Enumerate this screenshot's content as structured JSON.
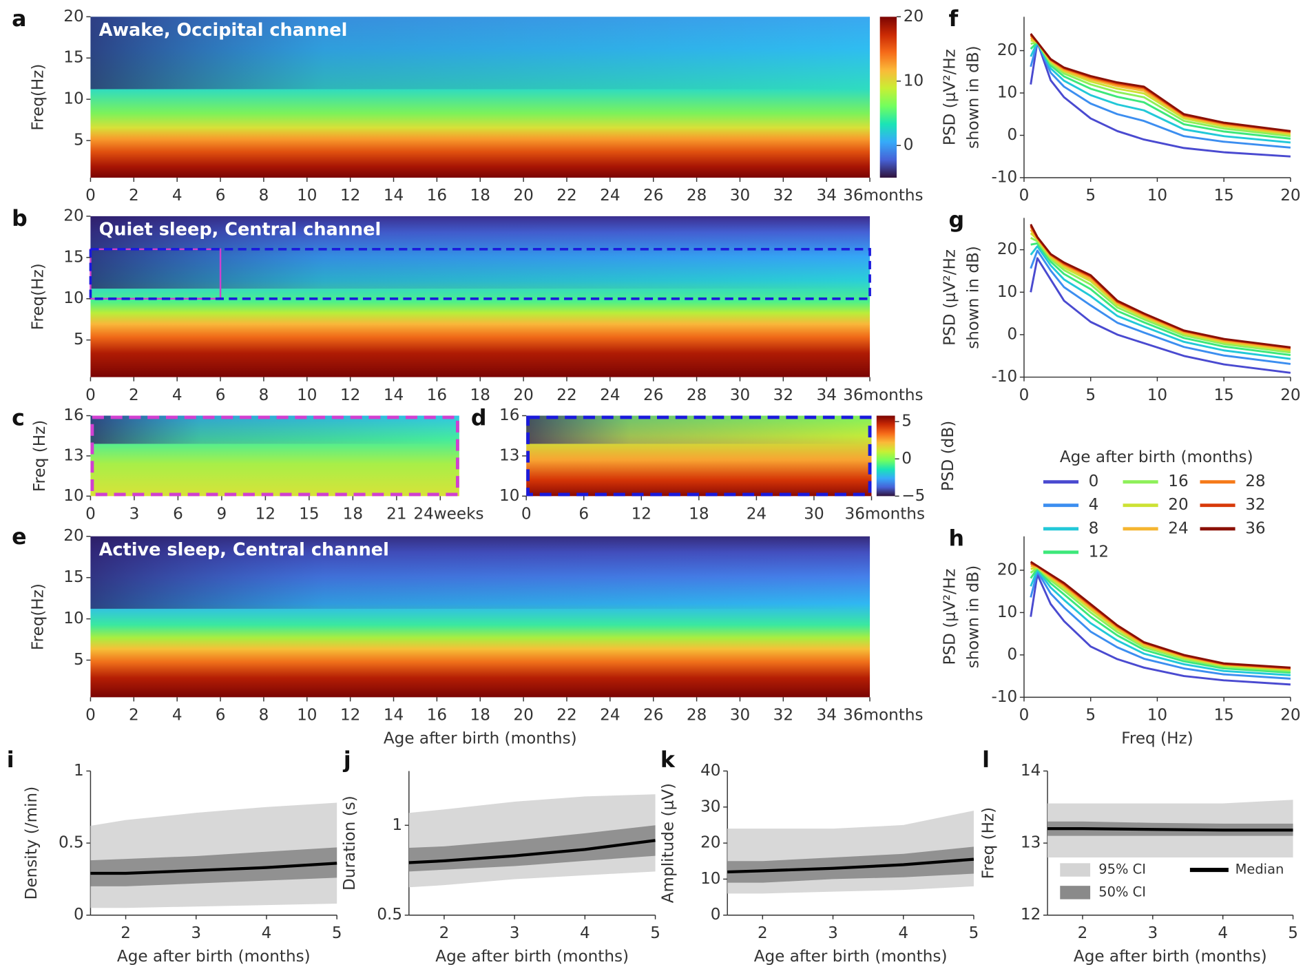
{
  "chart_data": [
    {
      "type": "heatmap",
      "label": "a",
      "title": "Awake, Occipital channel",
      "ylabel": "Freq(Hz)",
      "xlim": [
        0,
        36
      ],
      "xticks": [
        0,
        2,
        4,
        6,
        8,
        10,
        12,
        14,
        16,
        18,
        20,
        22,
        24,
        26,
        28,
        30,
        32,
        34,
        {
          "value": 36,
          "label": "36months"
        }
      ],
      "ylim": [
        0.5,
        20
      ],
      "yticks": [
        5,
        10,
        15,
        20
      ],
      "colorbar": {
        "lim": [
          -5,
          20
        ],
        "ticks": [
          0,
          10,
          20
        ],
        "colormap": [
          "#30123b",
          "#4662d7",
          "#36aaf9",
          "#1ae4b6",
          "#72fe5e",
          "#c8ef34",
          "#faba39",
          "#f66b19",
          "#ca2a04",
          "#7a0403"
        ]
      }
    },
    {
      "type": "heatmap",
      "label": "b",
      "title": "Quiet sleep, Central channel",
      "ylabel": "Freq(Hz)",
      "xlim": [
        0,
        36
      ],
      "xticks": [
        0,
        2,
        4,
        6,
        8,
        10,
        12,
        14,
        16,
        18,
        20,
        22,
        24,
        26,
        28,
        30,
        32,
        34,
        {
          "value": 36,
          "label": "36months"
        }
      ],
      "ylim": [
        0.5,
        20
      ],
      "yticks": [
        5,
        10,
        15,
        20
      ],
      "boxes": [
        {
          "xlim": [
            0,
            6
          ],
          "ylim": [
            10,
            16
          ],
          "color": "#d040d0",
          "dash": false
        },
        {
          "xlim": [
            0,
            36
          ],
          "ylim": [
            10,
            16
          ],
          "color": "#1a1adc",
          "dash": true
        }
      ]
    },
    {
      "type": "heatmap",
      "label": "c",
      "ylabel": "Freq (Hz)",
      "xlim": [
        0,
        25.3
      ],
      "xticks": [
        0,
        3,
        6,
        9,
        12,
        15,
        18,
        21,
        {
          "value": 24,
          "label": "24weeks"
        }
      ],
      "ylim": [
        10,
        16
      ],
      "yticks": [
        10,
        13,
        16
      ],
      "frame_color": "#d040d0"
    },
    {
      "type": "heatmap",
      "label": "d",
      "xlim": [
        0,
        36
      ],
      "xticks": [
        0,
        6,
        12,
        18,
        24,
        30,
        {
          "value": 36,
          "label": "36months"
        }
      ],
      "ylim": [
        10,
        16
      ],
      "yticks": [
        10,
        13,
        16
      ],
      "frame_color": "#1a1adc",
      "colorbar": {
        "lim": [
          -5,
          5.8
        ],
        "ticks": [
          {
            "value": -5,
            "label": "−5"
          },
          0,
          5
        ],
        "label": "PSD (dB)",
        "colormap": [
          "#30123b",
          "#4662d7",
          "#36aaf9",
          "#1ae4b6",
          "#72fe5e",
          "#c8ef34",
          "#faba39",
          "#f66b19",
          "#ca2a04",
          "#7a0403"
        ]
      }
    },
    {
      "type": "heatmap",
      "label": "e",
      "title": "Active sleep, Central channel",
      "ylabel": "Freq(Hz)",
      "xlabel": "Age after birth (months)",
      "xlim": [
        0,
        36
      ],
      "xticks": [
        0,
        2,
        4,
        6,
        8,
        10,
        12,
        14,
        16,
        18,
        20,
        22,
        24,
        26,
        28,
        30,
        32,
        34,
        {
          "value": 36,
          "label": "36months"
        }
      ],
      "ylim": [
        0.5,
        20
      ],
      "yticks": [
        5,
        10,
        15,
        20
      ]
    },
    {
      "type": "line",
      "label": "f",
      "ylabel": [
        "PSD (μV²/Hz",
        "shown in dB)"
      ],
      "xlim": [
        0,
        20
      ],
      "xticks": [
        0,
        5,
        10,
        15,
        20
      ],
      "ylim": [
        -10,
        28
      ],
      "yticks": [
        -10,
        0,
        10,
        20
      ],
      "x": [
        0.5,
        1,
        2,
        3,
        5,
        7,
        9,
        12,
        15,
        20
      ],
      "series": [
        {
          "color": "#4a4ad0",
          "values": [
            12,
            22,
            13,
            9,
            4,
            1,
            -1,
            -3,
            -4,
            -5
          ]
        },
        {
          "color": "#3c8ef0",
          "values": [
            16.2,
            22,
            14.8,
            11.5,
            7.5,
            5,
            3.4,
            -0.2,
            -1.5,
            -2.9
          ]
        },
        {
          "color": "#22c8d8",
          "values": [
            18.6,
            22,
            15.8,
            12.9,
            9.5,
            7.3,
            5.9,
            1.4,
            -0.2,
            -1.7
          ]
        },
        {
          "color": "#3de87a",
          "values": [
            20.4,
            22,
            16.5,
            13.9,
            11,
            9.1,
            7.8,
            2.6,
            0.9,
            -0.8
          ]
        },
        {
          "color": "#8ef05a",
          "values": [
            21.6,
            22,
            17,
            14.6,
            12,
            10.2,
            9,
            3.4,
            1.6,
            -0.2
          ]
        },
        {
          "color": "#cde234",
          "values": [
            22.4,
            22,
            17.4,
            15.1,
            12.7,
            11,
            9.9,
            4,
            2.1,
            0.2
          ]
        },
        {
          "color": "#f5b530",
          "values": [
            23,
            22,
            17.6,
            15.4,
            13.2,
            11.6,
            10.5,
            4.4,
            2.4,
            0.5
          ]
        },
        {
          "color": "#f57a1a",
          "values": [
            23.5,
            22,
            17.8,
            15.7,
            13.6,
            12,
            11,
            4.7,
            2.7,
            0.8
          ]
        },
        {
          "color": "#d83a0a",
          "values": [
            23.8,
            22,
            17.9,
            15.9,
            13.8,
            12.3,
            11.3,
            4.8,
            2.9,
            0.9
          ]
        },
        {
          "color": "#8a1005",
          "values": [
            24,
            22,
            18,
            16,
            14,
            12.5,
            11.5,
            5,
            3,
            1
          ]
        }
      ]
    },
    {
      "type": "line",
      "label": "g",
      "ylabel": [
        "PSD (μV²/Hz",
        "shown in dB)"
      ],
      "xlim": [
        0,
        20
      ],
      "xticks": [
        0,
        5,
        10,
        15,
        20
      ],
      "ylim": [
        -10,
        27.5
      ],
      "yticks": [
        -10,
        0,
        10,
        20
      ],
      "x": [
        0.5,
        1,
        2,
        3,
        5,
        7,
        9,
        12,
        15,
        20
      ],
      "series": [
        {
          "color": "#4a4ad0",
          "values": [
            10,
            18,
            13,
            8,
            3,
            0,
            -2,
            -5,
            -7,
            -9
          ]
        },
        {
          "color": "#3c8ef0",
          "values": [
            15.6,
            19.8,
            15.1,
            11.2,
            6.9,
            2.8,
            0.5,
            -2.9,
            -4.9,
            -6.9
          ]
        },
        {
          "color": "#22c8d8",
          "values": [
            18.8,
            20.8,
            16.3,
            13,
            9.1,
            4.4,
            1.9,
            -1.7,
            -3.7,
            -5.7
          ]
        },
        {
          "color": "#3de87a",
          "values": [
            21.2,
            21.5,
            17.2,
            14.3,
            10.7,
            5.6,
            2.9,
            -0.8,
            -2.8,
            -4.8
          ]
        },
        {
          "color": "#8ef05a",
          "values": [
            22.8,
            22,
            17.8,
            15.2,
            11.8,
            6.4,
            3.6,
            -0.2,
            -2.2,
            -4.2
          ]
        },
        {
          "color": "#cde234",
          "values": [
            23.9,
            22.4,
            18.2,
            15.8,
            12.6,
            7,
            4.1,
            0.2,
            -1.8,
            -3.8
          ]
        },
        {
          "color": "#f5b530",
          "values": [
            24.7,
            22.6,
            18.5,
            16.3,
            13.1,
            7.4,
            4.4,
            0.5,
            -1.5,
            -3.5
          ]
        },
        {
          "color": "#f57a1a",
          "values": [
            25.4,
            22.8,
            18.8,
            16.6,
            13.6,
            7.7,
            4.7,
            0.8,
            -1.2,
            -3.2
          ]
        },
        {
          "color": "#d83a0a",
          "values": [
            25.7,
            22.9,
            18.9,
            16.8,
            13.8,
            7.8,
            4.9,
            0.9,
            -1.1,
            -3.1
          ]
        },
        {
          "color": "#8a1005",
          "values": [
            26,
            23,
            19,
            17,
            14,
            8,
            5,
            1,
            -1,
            -3
          ]
        }
      ]
    },
    {
      "type": "line",
      "label": "h",
      "ylabel": [
        "PSD (μV²/Hz",
        "shown in dB)"
      ],
      "xlabel": "Freq (Hz)",
      "legend_title": "Age after birth (months)",
      "xlim": [
        0,
        20
      ],
      "xticks": [
        0,
        5,
        10,
        15,
        20
      ],
      "ylim": [
        -10,
        28
      ],
      "yticks": [
        -10,
        0,
        10,
        20
      ],
      "x": [
        0.5,
        1,
        2,
        3,
        5,
        7,
        9,
        12,
        15,
        20
      ],
      "series": [
        {
          "name": "0",
          "color": "#4a4ad0",
          "values": [
            9,
            19,
            12,
            8,
            2,
            -1,
            -3,
            -5,
            -6,
            -7
          ]
        },
        {
          "name": "4",
          "color": "#3c8ef0",
          "values": [
            13.6,
            19.7,
            14.5,
            11.2,
            5.5,
            1.8,
            -0.9,
            -3.2,
            -4.6,
            -5.6
          ]
        },
        {
          "name": "8",
          "color": "#22c8d8",
          "values": [
            16.2,
            20.1,
            15.9,
            13,
            7.5,
            3.4,
            0.3,
            -2.2,
            -3.8,
            -4.8
          ]
        },
        {
          "name": "12",
          "color": "#3de87a",
          "values": [
            18.1,
            20.4,
            16.9,
            14.3,
            9,
            4.6,
            1.2,
            -1.5,
            -3.2,
            -4.2
          ]
        },
        {
          "name": "16",
          "color": "#8ef05a",
          "values": [
            19.4,
            20.6,
            17.6,
            15.2,
            10,
            5.4,
            1.8,
            -1,
            -2.8,
            -3.8
          ]
        },
        {
          "name": "20",
          "color": "#cde234",
          "values": [
            20.3,
            20.7,
            18.1,
            15.8,
            10.7,
            6,
            2.2,
            -0.7,
            -2.5,
            -3.5
          ]
        },
        {
          "name": "24",
          "color": "#f5b530",
          "values": [
            21,
            20.8,
            18.4,
            16.3,
            11.2,
            6.4,
            2.5,
            -0.4,
            -2.3,
            -3.3
          ]
        },
        {
          "name": "28",
          "color": "#f57a1a",
          "values": [
            21.5,
            20.9,
            18.7,
            16.6,
            11.6,
            6.7,
            2.8,
            -0.2,
            -2.2,
            -3.2
          ]
        },
        {
          "name": "32",
          "color": "#d83a0a",
          "values": [
            21.7,
            21,
            18.9,
            16.8,
            11.8,
            6.9,
            2.9,
            -0.1,
            -2.1,
            -3.1
          ]
        },
        {
          "name": "36",
          "color": "#8a1005",
          "values": [
            22,
            21,
            19,
            17,
            12,
            7,
            3,
            0,
            -2,
            -3
          ]
        }
      ]
    },
    {
      "type": "band",
      "label": "i",
      "ylabel": "Density (/min)",
      "xlabel": "Age after birth (months)",
      "xlim": [
        1.5,
        5
      ],
      "xticks": [
        2,
        3,
        4,
        5
      ],
      "ylim": [
        0,
        1
      ],
      "yticks": [
        0,
        0.5,
        1
      ],
      "x": [
        1.5,
        2,
        3,
        4,
        5
      ],
      "bands": [
        {
          "color": "#d4d4d4",
          "lower": [
            0.05,
            0.05,
            0.06,
            0.07,
            0.08
          ],
          "upper": [
            0.62,
            0.66,
            0.71,
            0.75,
            0.78
          ]
        },
        {
          "color": "#8a8a8a",
          "lower": [
            0.2,
            0.2,
            0.22,
            0.24,
            0.26
          ],
          "upper": [
            0.38,
            0.39,
            0.41,
            0.44,
            0.47
          ]
        }
      ],
      "median": {
        "color": "#000000",
        "values": [
          0.29,
          0.29,
          0.31,
          0.33,
          0.36
        ]
      }
    },
    {
      "type": "band",
      "label": "j",
      "ylabel": "Duration (s)",
      "xlabel": "Age after birth (months)",
      "log": true,
      "xlim": [
        1.5,
        5
      ],
      "xticks": [
        2,
        3,
        4,
        5
      ],
      "ylim": [
        0.5,
        1.52
      ],
      "yticks": [
        0.5,
        1
      ],
      "x": [
        1.5,
        2,
        3,
        4,
        5
      ],
      "bands": [
        {
          "color": "#d4d4d4",
          "lower": [
            0.62,
            0.63,
            0.66,
            0.68,
            0.7
          ],
          "upper": [
            1.1,
            1.13,
            1.2,
            1.25,
            1.27
          ]
        },
        {
          "color": "#8a8a8a",
          "lower": [
            0.7,
            0.71,
            0.73,
            0.76,
            0.79
          ],
          "upper": [
            0.84,
            0.85,
            0.89,
            0.94,
            1.0
          ]
        }
      ],
      "median": {
        "color": "#000000",
        "values": [
          0.75,
          0.76,
          0.79,
          0.83,
          0.89
        ]
      }
    },
    {
      "type": "band",
      "label": "k",
      "ylabel": "Amplitude (μV)",
      "xlabel": "Age after birth (months)",
      "xlim": [
        1.5,
        5
      ],
      "xticks": [
        2,
        3,
        4,
        5
      ],
      "ylim": [
        0,
        40
      ],
      "yticks": [
        0,
        10,
        20,
        30,
        40
      ],
      "x": [
        1.5,
        2,
        3,
        4,
        5
      ],
      "bands": [
        {
          "color": "#d4d4d4",
          "lower": [
            6,
            6,
            6.5,
            7,
            8
          ],
          "upper": [
            24,
            24,
            24,
            25,
            29
          ]
        },
        {
          "color": "#8a8a8a",
          "lower": [
            9,
            9,
            10,
            10.5,
            11.5
          ],
          "upper": [
            15,
            15,
            16,
            17,
            19
          ]
        }
      ],
      "median": {
        "color": "#000000",
        "values": [
          12,
          12.3,
          13,
          14,
          15.5
        ]
      }
    },
    {
      "type": "band",
      "label": "l",
      "ylabel": "Freq (Hz)",
      "xlabel": "Age after birth (months)",
      "xlim": [
        1.5,
        5
      ],
      "xticks": [
        2,
        3,
        4,
        5
      ],
      "ylim": [
        12,
        14
      ],
      "yticks": [
        12,
        13,
        14
      ],
      "x": [
        1.5,
        2,
        3,
        4,
        5
      ],
      "bands": [
        {
          "name": "95% CI",
          "color": "#d4d4d4",
          "lower": [
            12.8,
            12.8,
            12.8,
            12.8,
            12.8
          ],
          "upper": [
            13.55,
            13.55,
            13.55,
            13.55,
            13.6
          ]
        },
        {
          "name": "50% CI",
          "color": "#8a8a8a",
          "lower": [
            13.1,
            13.1,
            13.1,
            13.1,
            13.1
          ],
          "upper": [
            13.3,
            13.3,
            13.28,
            13.27,
            13.27
          ]
        }
      ],
      "median": {
        "name": "Median",
        "color": "#000000",
        "values": [
          13.2,
          13.2,
          13.19,
          13.18,
          13.18
        ]
      }
    }
  ]
}
